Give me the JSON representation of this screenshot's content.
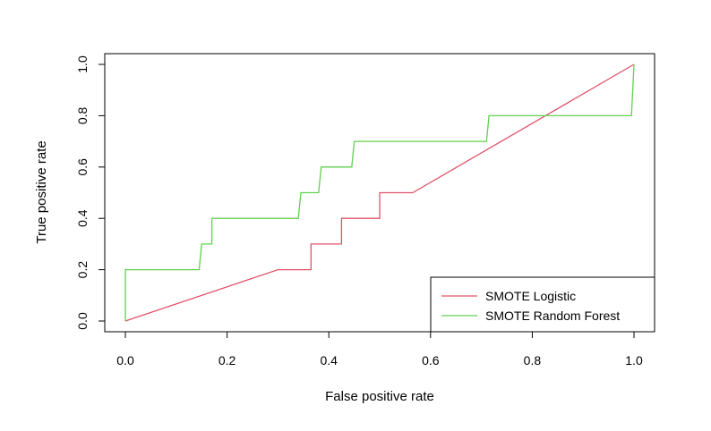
{
  "chart_data": {
    "type": "line",
    "title": "",
    "xlabel": "False positive rate",
    "ylabel": "True positive rate",
    "xlim": [
      0,
      1
    ],
    "ylim": [
      0,
      1
    ],
    "xticks": [
      "0.0",
      "0.2",
      "0.4",
      "0.6",
      "0.8",
      "1.0"
    ],
    "yticks": [
      "0.0",
      "0.2",
      "0.4",
      "0.6",
      "0.8",
      "1.0"
    ],
    "grid": false,
    "legend_position": "bottom-right",
    "series": [
      {
        "name": "SMOTE Logistic",
        "color": "#DF536B",
        "x": [
          0.0,
          0.3,
          0.365,
          0.365,
          0.425,
          0.425,
          0.5,
          0.5,
          0.565,
          1.0
        ],
        "y": [
          0.0,
          0.2,
          0.2,
          0.3,
          0.3,
          0.4,
          0.4,
          0.5,
          0.5,
          1.0
        ]
      },
      {
        "name": "SMOTE Random Forest",
        "color": "#61D04F",
        "x": [
          0.0,
          0.0,
          0.145,
          0.15,
          0.17,
          0.17,
          0.34,
          0.345,
          0.38,
          0.385,
          0.445,
          0.45,
          0.71,
          0.715,
          0.995,
          1.0
        ],
        "y": [
          0.0,
          0.2,
          0.2,
          0.3,
          0.3,
          0.4,
          0.4,
          0.5,
          0.5,
          0.6,
          0.6,
          0.7,
          0.7,
          0.8,
          0.8,
          1.0
        ]
      }
    ]
  }
}
